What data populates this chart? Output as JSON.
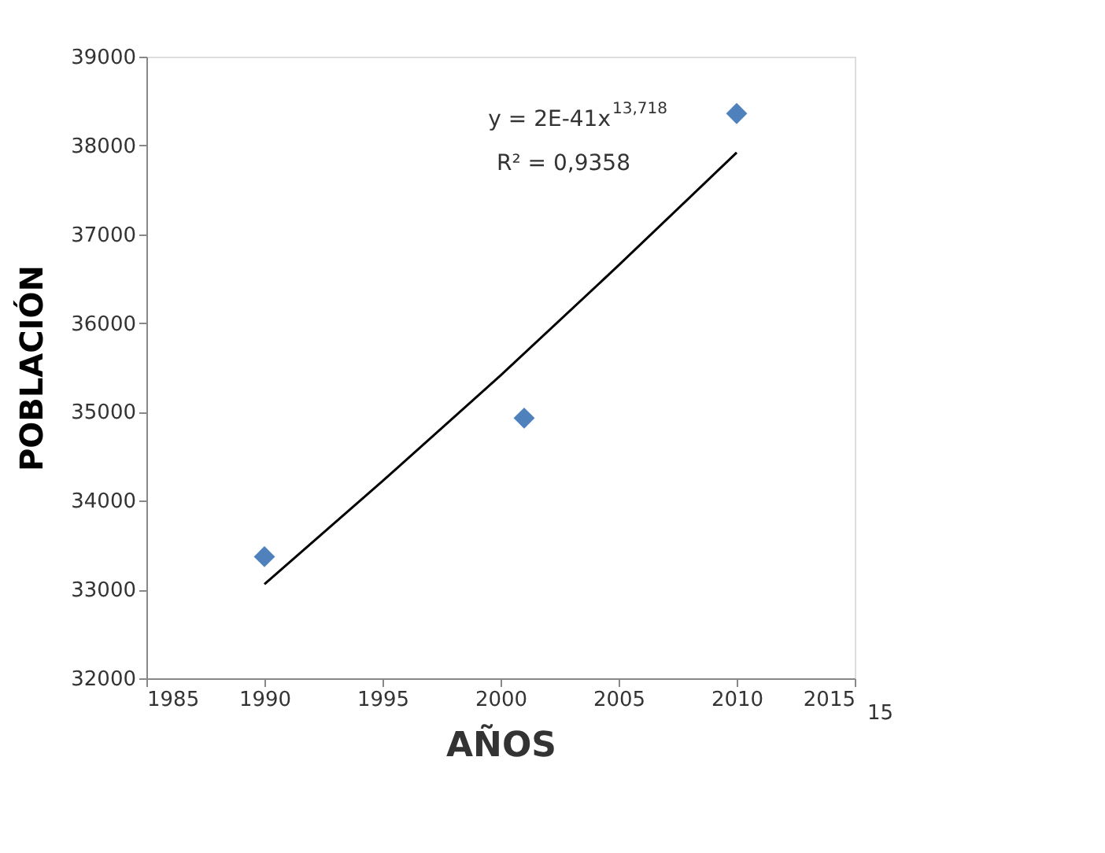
{
  "chart_data": {
    "type": "scatter",
    "xlabel": "AÑOS",
    "ylabel": "POBLACIÓN",
    "xlim": [
      1985,
      2015
    ],
    "xticks": [
      1985,
      1990,
      1995,
      2000,
      2005,
      2010,
      2015
    ],
    "ylim": [
      32000,
      39000
    ],
    "yticks": [
      32000,
      33000,
      34000,
      35000,
      36000,
      37000,
      38000,
      39000
    ],
    "grid": false,
    "marker": "diamond",
    "series": [
      {
        "color": "#4f81bd",
        "x": [
          1990,
          2001,
          2010
        ],
        "values": [
          33370,
          34930,
          38360
        ]
      },
      {
        "type": "line",
        "color": "#000000",
        "marker": "none",
        "line_style": "solid",
        "x": [
          1990,
          1995,
          2000,
          2005,
          2010
        ],
        "values": [
          33060,
          34220,
          35410,
          36650,
          37920
        ]
      }
    ],
    "annotations": [
      "y = 2E-41x$^{13,718}$",
      "R² = 0,9358",
      "15"
    ]
  }
}
